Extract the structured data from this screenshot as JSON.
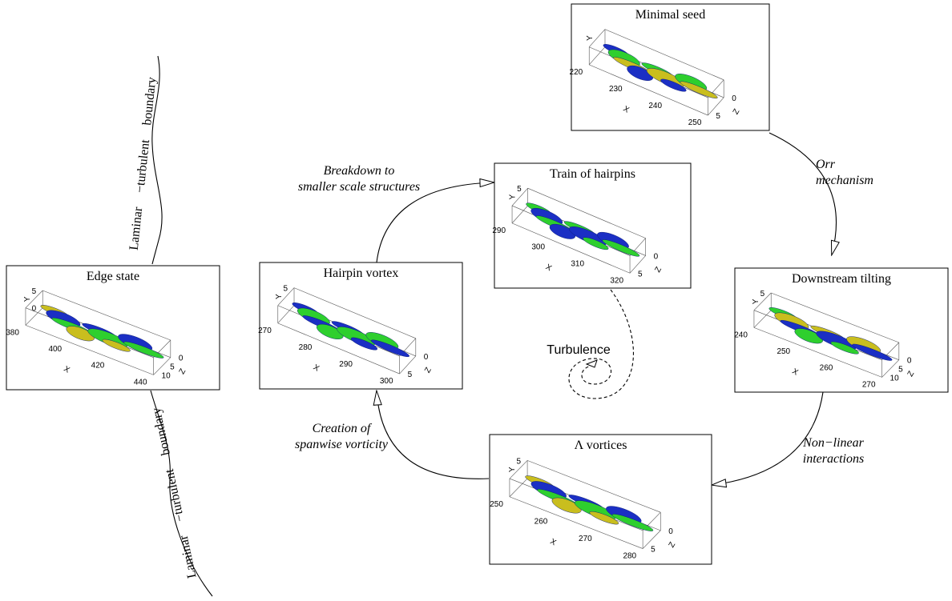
{
  "panels": [
    {
      "title": "Minimal seed",
      "y_axis": "Y",
      "x_axis": "X",
      "z_axis": "Z",
      "y_ticks": [],
      "x_ticks": [
        "220",
        "230",
        "240",
        "250"
      ],
      "z_ticks": [
        "0",
        "5"
      ]
    },
    {
      "title": "Downstream tilting",
      "y_axis": "Y",
      "x_axis": "X",
      "z_axis": "Z",
      "y_ticks": [
        "5"
      ],
      "x_ticks": [
        "240",
        "250",
        "260",
        "270"
      ],
      "z_ticks": [
        "0",
        "5",
        "10"
      ]
    },
    {
      "title": "Λ vortices",
      "y_axis": "Y",
      "x_axis": "X",
      "z_axis": "Z",
      "y_ticks": [
        "5"
      ],
      "x_ticks": [
        "250",
        "260",
        "270",
        "280"
      ],
      "z_ticks": [
        "0",
        "5"
      ]
    },
    {
      "title": "Train of hairpins",
      "y_axis": "Y",
      "x_axis": "X",
      "z_axis": "Z",
      "y_ticks": [
        "5"
      ],
      "x_ticks": [
        "290",
        "300",
        "310",
        "320"
      ],
      "z_ticks": [
        "0",
        "5"
      ]
    },
    {
      "title": "Hairpin vortex",
      "y_axis": "Y",
      "x_axis": "X",
      "z_axis": "Z",
      "y_ticks": [
        "5"
      ],
      "x_ticks": [
        "270",
        "280",
        "290",
        "300"
      ],
      "z_ticks": [
        "0",
        "5"
      ]
    },
    {
      "title": "Edge state",
      "y_axis": "Y",
      "x_axis": "X",
      "z_axis": "Z",
      "y_ticks": [
        "5",
        "0"
      ],
      "x_ticks": [
        "380",
        "400",
        "420",
        "440"
      ],
      "z_ticks": [
        "0",
        "5",
        "10"
      ]
    }
  ],
  "transitions": [
    {
      "lines": [
        "Orr",
        "mechanism"
      ]
    },
    {
      "lines": [
        "Non−linear",
        "interactions"
      ]
    },
    {
      "lines": [
        "Creation of",
        "spanwise vorticity"
      ]
    },
    {
      "lines": [
        "Breakdown to",
        "smaller scale structures"
      ]
    }
  ],
  "turbulence": "Turbulence",
  "boundary_top": "Laminar −turbulent boundary",
  "boundary_bottom": "Laminar −turbulent boundary"
}
